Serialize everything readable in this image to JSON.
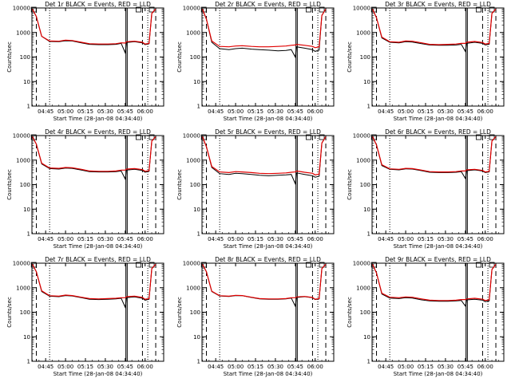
{
  "colors": {
    "events": "#000000",
    "lld": "#e00000",
    "axis": "#000000",
    "background": "#ffffff"
  },
  "chart_data": [
    {
      "type": "line",
      "title": "Det 1r BLACK = Events, RED = LLD",
      "xlabel": "Start Time (28-Jan-08 04:34:40)",
      "ylabel": "Counts/sec",
      "xlim": [
        "04:34:40",
        "06:14:00"
      ],
      "ylim": [
        1,
        10000
      ],
      "yscale": "log",
      "xticks": [
        "04:45",
        "05:00",
        "05:15",
        "05:30",
        "05:45",
        "06:00"
      ],
      "yticks": [
        "1",
        "10",
        "100",
        "1000",
        "10000"
      ],
      "x": [
        "04:35",
        "04:38",
        "04:42",
        "04:48",
        "04:55",
        "05:00",
        "05:05",
        "05:12",
        "05:18",
        "05:25",
        "05:32",
        "05:38",
        "05:42",
        "05:45",
        "05:46",
        "05:52",
        "05:58",
        "06:00",
        "06:03",
        "06:05",
        "06:08"
      ],
      "series": [
        {
          "name": "BLACK = Events",
          "values": [
            9000,
            4500,
            700,
            430,
            420,
            460,
            450,
            380,
            330,
            320,
            320,
            330,
            360,
            150,
            390,
            420,
            380,
            320,
            350,
            6000,
            9000
          ]
        },
        {
          "name": "RED = LLD",
          "values": [
            9000,
            4500,
            700,
            450,
            440,
            490,
            470,
            400,
            350,
            340,
            340,
            350,
            380,
            370,
            420,
            440,
            400,
            340,
            360,
            6000,
            9000
          ]
        }
      ]
    },
    {
      "type": "line",
      "title": "Det 2r BLACK = Events, RED = LLD",
      "xlabel": "Start Time (28-Jan-08 04:34:40)",
      "ylabel": "Counts/sec",
      "xlim": [
        "04:34:40",
        "06:14:00"
      ],
      "ylim": [
        1,
        10000
      ],
      "yscale": "log",
      "xticks": [
        "04:45",
        "05:00",
        "05:15",
        "05:30",
        "05:45",
        "06:00"
      ],
      "yticks": [
        "1",
        "10",
        "100",
        "1000",
        "10000"
      ],
      "x": [
        "04:35",
        "04:38",
        "04:42",
        "04:48",
        "04:55",
        "05:00",
        "05:05",
        "05:12",
        "05:18",
        "05:25",
        "05:32",
        "05:38",
        "05:42",
        "05:45",
        "05:46",
        "05:52",
        "05:58",
        "06:00",
        "06:03",
        "06:05",
        "06:08"
      ],
      "series": [
        {
          "name": "BLACK = Events",
          "values": [
            9000,
            3500,
            400,
            220,
            200,
            220,
            230,
            210,
            200,
            190,
            180,
            185,
            200,
            100,
            260,
            230,
            200,
            170,
            190,
            5000,
            9000
          ]
        },
        {
          "name": "RED = LLD",
          "values": [
            9000,
            3500,
            450,
            270,
            260,
            280,
            290,
            270,
            260,
            260,
            270,
            280,
            300,
            310,
            330,
            300,
            270,
            240,
            260,
            5000,
            9000
          ]
        }
      ]
    },
    {
      "type": "line",
      "title": "Det 3r BLACK = Events, RED = LLD",
      "xlabel": "Start Time (28-Jan-08 04:34:40)",
      "ylabel": "Counts/sec",
      "xlim": [
        "04:34:40",
        "06:14:00"
      ],
      "ylim": [
        1,
        10000
      ],
      "yscale": "log",
      "xticks": [
        "04:45",
        "05:00",
        "05:15",
        "05:30",
        "05:45",
        "06:00"
      ],
      "yticks": [
        "1",
        "10",
        "100",
        "1000",
        "10000"
      ],
      "x": [
        "04:35",
        "04:38",
        "04:42",
        "04:48",
        "04:55",
        "05:00",
        "05:05",
        "05:12",
        "05:18",
        "05:25",
        "05:32",
        "05:38",
        "05:42",
        "05:45",
        "05:46",
        "05:52",
        "05:58",
        "06:00",
        "06:03",
        "06:05",
        "06:08"
      ],
      "series": [
        {
          "name": "BLACK = Events",
          "values": [
            9000,
            4000,
            600,
            400,
            380,
            420,
            410,
            350,
            310,
            300,
            300,
            310,
            330,
            170,
            360,
            400,
            360,
            310,
            330,
            6000,
            9000
          ]
        },
        {
          "name": "RED = LLD",
          "values": [
            9000,
            4000,
            650,
            420,
            400,
            450,
            440,
            380,
            330,
            320,
            330,
            340,
            360,
            360,
            400,
            430,
            390,
            340,
            360,
            6000,
            9000
          ]
        }
      ]
    },
    {
      "type": "line",
      "title": "Det 4r BLACK = Events, RED = LLD",
      "xlabel": "Start Time (28-Jan-08 04:34:40)",
      "ylabel": "Counts/sec",
      "xlim": [
        "04:34:40",
        "06:14:00"
      ],
      "ylim": [
        1,
        10000
      ],
      "yscale": "log",
      "xticks": [
        "04:45",
        "05:00",
        "05:15",
        "05:30",
        "05:45",
        "06:00"
      ],
      "yticks": [
        "1",
        "10",
        "100",
        "1000",
        "10000"
      ],
      "x": [
        "04:35",
        "04:38",
        "04:42",
        "04:48",
        "04:55",
        "05:00",
        "05:05",
        "05:12",
        "05:18",
        "05:25",
        "05:32",
        "05:38",
        "05:42",
        "05:45",
        "05:46",
        "05:52",
        "05:58",
        "06:00",
        "06:03",
        "06:05",
        "06:08"
      ],
      "series": [
        {
          "name": "BLACK = Events",
          "values": [
            9000,
            4500,
            700,
            450,
            430,
            470,
            460,
            390,
            340,
            330,
            330,
            340,
            360,
            170,
            390,
            420,
            380,
            320,
            350,
            6000,
            9000
          ]
        },
        {
          "name": "RED = LLD",
          "values": [
            9000,
            4500,
            750,
            480,
            460,
            500,
            490,
            420,
            360,
            350,
            350,
            360,
            390,
            390,
            430,
            450,
            410,
            350,
            370,
            6000,
            9000
          ]
        }
      ]
    },
    {
      "type": "line",
      "title": "Det 5r BLACK = Events, RED = LLD",
      "xlabel": "Start Time (28-Jan-08 04:34:40)",
      "ylabel": "Counts/sec",
      "xlim": [
        "04:34:40",
        "06:14:00"
      ],
      "ylim": [
        1,
        10000
      ],
      "yscale": "log",
      "xticks": [
        "04:45",
        "05:00",
        "05:15",
        "05:30",
        "05:45",
        "06:00"
      ],
      "yticks": [
        "1",
        "10",
        "100",
        "1000",
        "10000"
      ],
      "x": [
        "04:35",
        "04:38",
        "04:42",
        "04:48",
        "04:55",
        "05:00",
        "05:05",
        "05:12",
        "05:18",
        "05:25",
        "05:32",
        "05:38",
        "05:42",
        "05:45",
        "05:46",
        "05:52",
        "05:58",
        "06:00",
        "06:03",
        "06:05",
        "06:08"
      ],
      "series": [
        {
          "name": "BLACK = Events",
          "values": [
            9000,
            3500,
            500,
            280,
            260,
            290,
            280,
            260,
            240,
            230,
            240,
            250,
            260,
            110,
            300,
            260,
            230,
            200,
            220,
            5000,
            9000
          ]
        },
        {
          "name": "RED = LLD",
          "values": [
            9000,
            3500,
            550,
            330,
            310,
            340,
            330,
            310,
            290,
            280,
            290,
            300,
            320,
            330,
            360,
            320,
            290,
            250,
            270,
            5000,
            9000
          ]
        }
      ]
    },
    {
      "type": "line",
      "title": "Det 6r BLACK = Events, RED = LLD",
      "xlabel": "Start Time (28-Jan-08 04:34:40)",
      "ylabel": "Counts/sec",
      "xlim": [
        "04:34:40",
        "06:14:00"
      ],
      "ylim": [
        1,
        10000
      ],
      "yscale": "log",
      "xticks": [
        "04:45",
        "05:00",
        "05:15",
        "05:30",
        "05:45",
        "06:00"
      ],
      "yticks": [
        "1",
        "10",
        "100",
        "1000",
        "10000"
      ],
      "x": [
        "04:35",
        "04:38",
        "04:42",
        "04:48",
        "04:55",
        "05:00",
        "05:05",
        "05:12",
        "05:18",
        "05:25",
        "05:32",
        "05:38",
        "05:42",
        "05:45",
        "05:46",
        "05:52",
        "05:58",
        "06:00",
        "06:03",
        "06:05",
        "06:08"
      ],
      "series": [
        {
          "name": "BLACK = Events",
          "values": [
            9000,
            4200,
            600,
            420,
            400,
            440,
            430,
            370,
            320,
            310,
            310,
            320,
            340,
            180,
            370,
            400,
            360,
            310,
            330,
            6000,
            9000
          ]
        },
        {
          "name": "RED = LLD",
          "values": [
            9000,
            4200,
            650,
            440,
            420,
            460,
            450,
            390,
            340,
            330,
            330,
            340,
            360,
            360,
            400,
            420,
            380,
            330,
            350,
            6000,
            9000
          ]
        }
      ]
    },
    {
      "type": "line",
      "title": "Det 7r BLACK = Events, RED = LLD",
      "xlabel": "Start Time (28-Jan-08 04:34:40)",
      "ylabel": "Counts/sec",
      "xlim": [
        "04:34:40",
        "06:14:00"
      ],
      "ylim": [
        1,
        10000
      ],
      "yscale": "log",
      "xticks": [
        "04:45",
        "05:00",
        "05:15",
        "05:30",
        "05:45",
        "06:00"
      ],
      "yticks": [
        "1",
        "10",
        "100",
        "1000",
        "10000"
      ],
      "x": [
        "04:35",
        "04:38",
        "04:42",
        "04:48",
        "04:55",
        "05:00",
        "05:05",
        "05:12",
        "05:18",
        "05:25",
        "05:32",
        "05:38",
        "05:42",
        "05:45",
        "05:46",
        "05:52",
        "05:58",
        "06:00",
        "06:03",
        "06:05",
        "06:08"
      ],
      "series": [
        {
          "name": "BLACK = Events",
          "values": [
            9000,
            4500,
            700,
            450,
            430,
            480,
            460,
            390,
            340,
            330,
            340,
            350,
            370,
            160,
            390,
            420,
            370,
            310,
            340,
            6000,
            9000
          ]
        },
        {
          "name": "RED = LLD",
          "values": [
            9000,
            4500,
            750,
            470,
            450,
            500,
            480,
            410,
            360,
            350,
            360,
            370,
            390,
            390,
            430,
            450,
            400,
            340,
            360,
            6000,
            9000
          ]
        }
      ]
    },
    {
      "type": "line",
      "title": "Det 8r BLACK = Events, RED = LLD",
      "xlabel": "Start Time (28-Jan-08 04:34:40)",
      "ylabel": "Counts/sec",
      "xlim": [
        "04:34:40",
        "06:14:00"
      ],
      "ylim": [
        1,
        10000
      ],
      "yscale": "log",
      "xticks": [
        "04:45",
        "05:00",
        "05:15",
        "05:30",
        "05:45",
        "06:00"
      ],
      "yticks": [
        "1",
        "10",
        "100",
        "1000",
        "10000"
      ],
      "x": [
        "04:35",
        "04:38",
        "04:42",
        "04:48",
        "04:55",
        "05:00",
        "05:05",
        "05:12",
        "05:18",
        "05:25",
        "05:32",
        "05:38",
        "05:42",
        "05:45",
        "05:46",
        "05:52",
        "05:58",
        "06:00",
        "06:03",
        "06:05",
        "06:08"
      ],
      "series": [
        {
          "name": "BLACK = Events",
          "values": [
            9000,
            4500,
            700,
            460,
            440,
            480,
            470,
            400,
            350,
            340,
            340,
            350,
            380,
            180,
            400,
            430,
            390,
            330,
            350,
            6000,
            9000
          ]
        },
        {
          "name": "RED = LLD",
          "values": [
            9000,
            4500,
            720,
            470,
            450,
            490,
            480,
            410,
            360,
            350,
            350,
            360,
            390,
            390,
            420,
            440,
            400,
            340,
            360,
            6000,
            9000
          ]
        }
      ]
    },
    {
      "type": "line",
      "title": "Det 9r BLACK = Events, RED = LLD",
      "xlabel": "Start Time (28-Jan-08 04:34:40)",
      "ylabel": "Counts/sec",
      "xlim": [
        "04:34:40",
        "06:14:00"
      ],
      "ylim": [
        1,
        10000
      ],
      "yscale": "log",
      "xticks": [
        "04:45",
        "05:00",
        "05:15",
        "05:30",
        "05:45",
        "06:00"
      ],
      "yticks": [
        "1",
        "10",
        "100",
        "1000",
        "10000"
      ],
      "x": [
        "04:35",
        "04:38",
        "04:42",
        "04:48",
        "04:55",
        "05:00",
        "05:05",
        "05:12",
        "05:18",
        "05:25",
        "05:32",
        "05:38",
        "05:42",
        "05:45",
        "05:46",
        "05:52",
        "05:58",
        "06:00",
        "06:03",
        "06:05",
        "06:08"
      ],
      "series": [
        {
          "name": "BLACK = Events",
          "values": [
            9000,
            4000,
            550,
            380,
            360,
            390,
            380,
            320,
            290,
            280,
            280,
            290,
            300,
            180,
            320,
            340,
            310,
            270,
            290,
            5500,
            9000
          ]
        },
        {
          "name": "RED = LLD",
          "values": [
            9000,
            4000,
            600,
            410,
            390,
            420,
            410,
            350,
            310,
            300,
            300,
            310,
            330,
            330,
            350,
            370,
            340,
            300,
            320,
            5500,
            9000
          ]
        }
      ]
    }
  ]
}
